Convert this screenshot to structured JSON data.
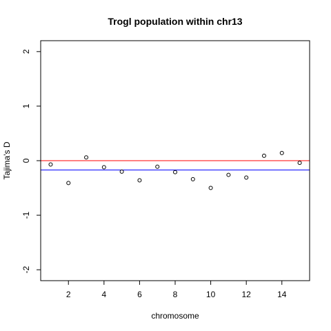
{
  "chart_data": {
    "type": "scatter",
    "title": "Trogl population within chr13",
    "xlabel": "chromosome",
    "ylabel": "Tajima's D",
    "xlim": [
      0.44,
      15.56
    ],
    "ylim": [
      -2.2,
      2.2
    ],
    "xticks": [
      2,
      4,
      6,
      8,
      10,
      12,
      14
    ],
    "yticks": [
      -2,
      -1,
      0,
      1,
      2
    ],
    "grid": false,
    "legend": "none",
    "points": {
      "x": [
        1,
        2,
        3,
        4,
        5,
        6,
        7,
        8,
        9,
        10,
        11,
        12,
        13,
        14,
        15
      ],
      "y": [
        -0.07,
        -0.41,
        0.06,
        -0.12,
        -0.2,
        -0.36,
        -0.11,
        -0.21,
        -0.34,
        -0.5,
        -0.26,
        -0.31,
        0.09,
        0.14,
        -0.04
      ]
    },
    "hlines": [
      {
        "y": 0,
        "color": "#ff0000"
      },
      {
        "y": -0.17,
        "color": "#0000ff"
      }
    ],
    "colors": {
      "points": "#000000",
      "axes": "#000000"
    }
  }
}
